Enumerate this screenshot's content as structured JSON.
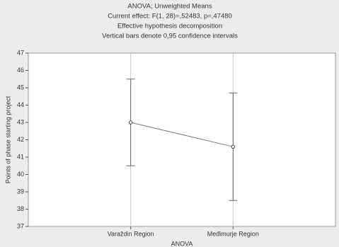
{
  "chart_data": {
    "type": "line",
    "title_lines": [
      "ANOVA; Unweighted Means",
      "Current effect: F(1, 28)=,52483, p=,47480",
      "Effective hypothesis decomposition",
      "Vertical bars denote 0,95 confidence intervals"
    ],
    "x_label": "ANOVA",
    "y_label": "Points of phase starting project",
    "categories": [
      "Varaždin Region",
      "Međimurje Region"
    ],
    "series": [
      {
        "values": [
          43.0,
          41.6
        ],
        "errors": [
          2.5,
          3.1
        ],
        "color": "#7a7a7a"
      }
    ],
    "ylim": [
      37,
      47
    ],
    "yticks": [
      37,
      38,
      39,
      40,
      41,
      42,
      43,
      44,
      45,
      46,
      47
    ]
  }
}
